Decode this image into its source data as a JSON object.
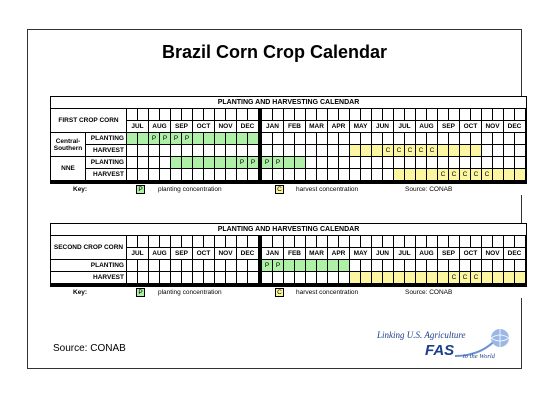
{
  "title": "Brazil Corn Crop Calendar",
  "source_note": "Source: CONAB",
  "logo": {
    "tagline": "Linking U.S. Agriculture",
    "name": "FAS",
    "suffix": "to the World"
  },
  "colors": {
    "planting": "#aef0a6",
    "harvest": "#fdf6a0"
  },
  "months": [
    "JUL",
    "AUG",
    "SEP",
    "OCT",
    "NOV",
    "DEC",
    "JAN",
    "FEB",
    "MAR",
    "APR",
    "MAY",
    "JUN",
    "JUL",
    "AUG",
    "SEP",
    "OCT",
    "NOV",
    "DEC"
  ],
  "calendars": [
    {
      "header": "PLANTING AND HARVESTING CALENDAR",
      "crop_label": "FIRST CROP CORN",
      "regions": [
        {
          "name_lines": [
            "Central-",
            "Southern"
          ],
          "rows": [
            {
              "label": "PLANTING",
              "type": "planting",
              "shade": [
                [
                  4,
                  15
                ]
              ],
              "marks": [
                [
                  6,
                  "P"
                ],
                [
                  7,
                  "P"
                ],
                [
                  8,
                  "P"
                ],
                [
                  9,
                  "P"
                ]
              ]
            },
            {
              "label": "HARVEST",
              "type": "harvest",
              "shade": [
                [
                  24,
                  35
                ]
              ],
              "marks": [
                [
                  27,
                  "C"
                ],
                [
                  28,
                  "C"
                ],
                [
                  29,
                  "C"
                ],
                [
                  30,
                  "C"
                ],
                [
                  31,
                  "C"
                ]
              ]
            }
          ]
        },
        {
          "name_lines": [
            "NNE"
          ],
          "rows": [
            {
              "label": "PLANTING",
              "type": "planting",
              "shade": [
                [
                  8,
                  19
                ]
              ],
              "marks": [
                [
                  14,
                  "P"
                ],
                [
                  15,
                  "P"
                ],
                [
                  16,
                  "P"
                ],
                [
                  17,
                  "P"
                ]
              ]
            },
            {
              "label": "HARVEST",
              "type": "harvest",
              "shade": [
                [
                  28,
                  39
                ]
              ],
              "marks": [
                [
                  32,
                  "C"
                ],
                [
                  33,
                  "C"
                ],
                [
                  34,
                  "C"
                ],
                [
                  35,
                  "C"
                ],
                [
                  36,
                  "C"
                ]
              ]
            }
          ]
        }
      ],
      "key": {
        "label": "Key:",
        "p_sym": "P",
        "p_text": "planting concentration",
        "c_sym": "C",
        "c_text": "harvest concentration",
        "source": "Source: CONAB"
      }
    },
    {
      "header": "PLANTING AND HARVESTING CALENDAR",
      "crop_label": "SECOND CROP CORN",
      "regions": [
        {
          "name_lines": [
            ""
          ],
          "rows": [
            {
              "label": "PLANTING",
              "type": "planting",
              "shade": [
                [
                  16,
                  23
                ]
              ],
              "marks": [
                [
                  16,
                  "P"
                ],
                [
                  17,
                  "P"
                ]
              ]
            },
            {
              "label": "HARVEST",
              "type": "harvest",
              "shade": [
                [
                  24,
                  41
                ]
              ],
              "marks": [
                [
                  33,
                  "C"
                ],
                [
                  34,
                  "C"
                ],
                [
                  35,
                  "C"
                ]
              ]
            }
          ]
        }
      ],
      "key": {
        "label": "Key:",
        "p_sym": "P",
        "p_text": "planting concentration",
        "c_sym": "C",
        "c_text": "harvest concentration",
        "source": "Source: CONAB"
      }
    }
  ]
}
